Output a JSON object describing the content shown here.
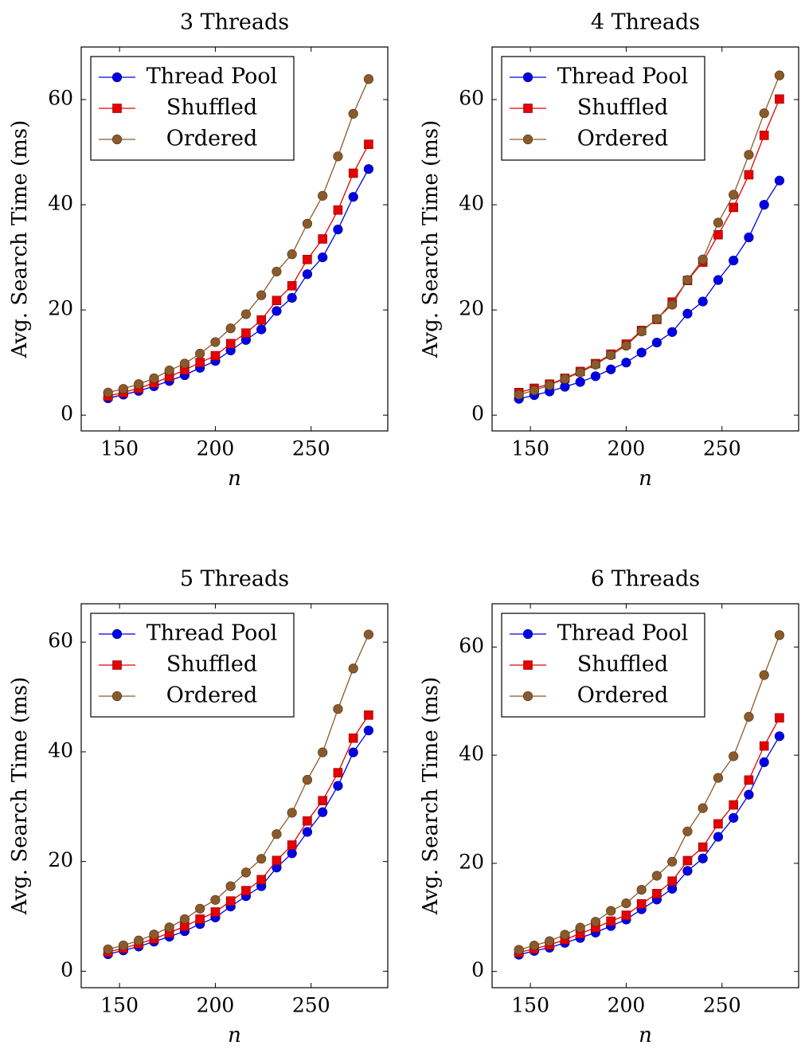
{
  "colors": {
    "thread_pool": "#0000e6",
    "shuffled": "#e60000",
    "ordered": "#8b5a2b"
  },
  "legend": {
    "position": "top-left",
    "labels": [
      "Thread Pool",
      "Shuffled",
      "Ordered"
    ]
  },
  "chart_data": [
    {
      "type": "line",
      "title": "3 Threads",
      "xlabel": "n",
      "ylabel": "Avg. Search Time (ms)",
      "xlim": [
        130,
        290
      ],
      "ylim": [
        -3,
        70
      ],
      "xticks": [
        150,
        200,
        250
      ],
      "yticks": [
        0,
        20,
        40,
        60
      ],
      "grid": false,
      "x": [
        144,
        152,
        160,
        168,
        176,
        184,
        192,
        200,
        208,
        216,
        224,
        232,
        240,
        248,
        256,
        264,
        272,
        280
      ],
      "series": [
        {
          "name": "Thread Pool",
          "marker": "circle",
          "values": [
            3.2,
            3.9,
            4.6,
            5.5,
            6.5,
            7.6,
            9.0,
            10.3,
            12.3,
            14.3,
            16.3,
            19.8,
            22.3,
            26.8,
            30.0,
            35.3,
            41.5,
            46.8
          ]
        },
        {
          "name": "Shuffled",
          "marker": "square",
          "values": [
            3.6,
            4.3,
            5.1,
            6.1,
            7.3,
            8.6,
            10.0,
            11.3,
            13.6,
            15.6,
            18.1,
            21.8,
            24.6,
            29.6,
            33.5,
            39.0,
            46.0,
            51.5
          ]
        },
        {
          "name": "Ordered",
          "marker": "circle",
          "values": [
            4.3,
            5.0,
            5.9,
            7.0,
            8.5,
            9.8,
            11.7,
            13.9,
            16.5,
            19.2,
            22.8,
            27.3,
            30.6,
            36.4,
            41.7,
            49.2,
            57.3,
            63.9
          ]
        }
      ]
    },
    {
      "type": "line",
      "title": "4 Threads",
      "xlabel": "n",
      "ylabel": "Avg. Search Time (ms)",
      "xlim": [
        130,
        290
      ],
      "ylim": [
        -3,
        70
      ],
      "xticks": [
        150,
        200,
        250
      ],
      "yticks": [
        0,
        20,
        40,
        60
      ],
      "grid": false,
      "x": [
        144,
        152,
        160,
        168,
        176,
        184,
        192,
        200,
        208,
        216,
        224,
        232,
        240,
        248,
        256,
        264,
        272,
        280
      ],
      "series": [
        {
          "name": "Thread Pool",
          "marker": "circle",
          "values": [
            3.1,
            3.8,
            4.5,
            5.4,
            6.3,
            7.4,
            8.7,
            10.0,
            11.9,
            13.8,
            15.8,
            19.3,
            21.6,
            25.7,
            29.4,
            33.8,
            40.0,
            44.6
          ]
        },
        {
          "name": "Shuffled",
          "marker": "square",
          "values": [
            4.3,
            5.1,
            5.9,
            7.0,
            8.3,
            9.8,
            11.6,
            13.5,
            16.1,
            18.2,
            21.5,
            25.6,
            29.1,
            34.3,
            39.5,
            45.7,
            53.2,
            60.1
          ]
        },
        {
          "name": "Ordered",
          "marker": "circle",
          "values": [
            3.9,
            4.7,
            5.7,
            6.9,
            8.1,
            9.6,
            11.4,
            13.2,
            15.9,
            18.3,
            21.0,
            25.7,
            29.6,
            36.6,
            41.9,
            49.5,
            57.4,
            64.6
          ]
        }
      ]
    },
    {
      "type": "line",
      "title": "5 Threads",
      "xlabel": "n",
      "ylabel": "Avg. Search Time (ms)",
      "xlim": [
        130,
        290
      ],
      "ylim": [
        -3,
        67
      ],
      "xticks": [
        150,
        200,
        250
      ],
      "yticks": [
        0,
        20,
        40,
        60
      ],
      "grid": false,
      "x": [
        144,
        152,
        160,
        168,
        176,
        184,
        192,
        200,
        208,
        216,
        224,
        232,
        240,
        248,
        256,
        264,
        272,
        280
      ],
      "series": [
        {
          "name": "Thread Pool",
          "marker": "circle",
          "values": [
            3.1,
            3.8,
            4.5,
            5.4,
            6.3,
            7.3,
            8.6,
            9.8,
            11.8,
            13.7,
            15.5,
            18.9,
            21.5,
            25.4,
            29.0,
            33.8,
            39.9,
            43.9
          ]
        },
        {
          "name": "Shuffled",
          "marker": "square",
          "values": [
            3.5,
            4.2,
            5.0,
            5.9,
            7.0,
            8.2,
            9.5,
            10.8,
            12.8,
            14.7,
            16.7,
            20.2,
            23.0,
            27.4,
            31.1,
            36.2,
            42.5,
            46.7
          ]
        },
        {
          "name": "Ordered",
          "marker": "circle",
          "values": [
            4.0,
            4.7,
            5.6,
            6.7,
            8.0,
            9.5,
            11.4,
            13.0,
            15.5,
            18.0,
            20.5,
            25.0,
            28.9,
            34.9,
            39.9,
            47.8,
            55.2,
            61.4
          ]
        }
      ]
    },
    {
      "type": "line",
      "title": "6 Threads",
      "xlabel": "n",
      "ylabel": "Avg. Search Time (ms)",
      "xlim": [
        130,
        290
      ],
      "ylim": [
        -3,
        68
      ],
      "xticks": [
        150,
        200,
        250
      ],
      "yticks": [
        0,
        20,
        40,
        60
      ],
      "grid": false,
      "x": [
        144,
        152,
        160,
        168,
        176,
        184,
        192,
        200,
        208,
        216,
        224,
        232,
        240,
        248,
        256,
        264,
        272,
        280
      ],
      "series": [
        {
          "name": "Thread Pool",
          "marker": "circle",
          "values": [
            3.1,
            3.8,
            4.4,
            5.3,
            6.2,
            7.2,
            8.4,
            9.6,
            11.5,
            13.3,
            15.3,
            18.6,
            20.9,
            24.9,
            28.4,
            32.7,
            38.7,
            43.5
          ]
        },
        {
          "name": "Shuffled",
          "marker": "square",
          "values": [
            3.5,
            4.2,
            4.9,
            5.9,
            7.0,
            8.1,
            9.3,
            10.4,
            12.5,
            14.4,
            16.7,
            20.5,
            23.0,
            27.3,
            30.8,
            35.4,
            41.7,
            46.9
          ]
        },
        {
          "name": "Ordered",
          "marker": "circle",
          "values": [
            4.0,
            4.8,
            5.6,
            6.8,
            8.1,
            9.2,
            11.2,
            12.6,
            15.1,
            17.7,
            20.3,
            25.9,
            30.2,
            35.8,
            39.8,
            47.1,
            54.8,
            62.2
          ]
        }
      ]
    }
  ]
}
